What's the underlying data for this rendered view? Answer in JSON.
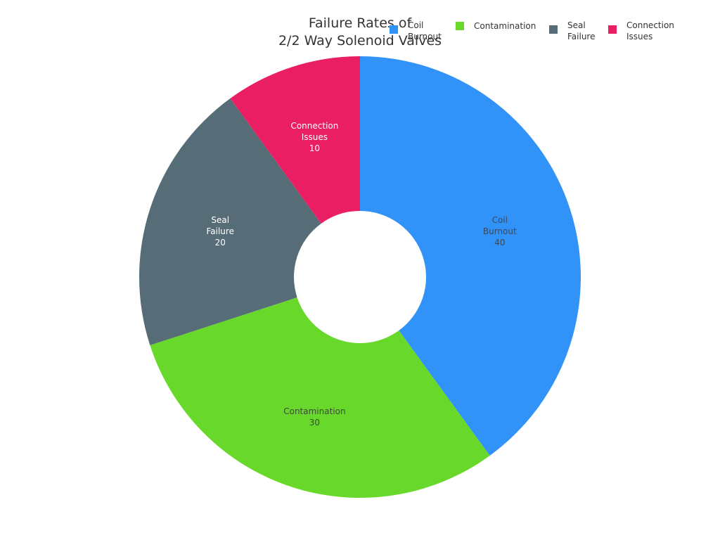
{
  "chart_data": {
    "type": "pie",
    "variant": "donut",
    "title": "Failure Rates of 2/2 Way Solenoid Valves",
    "title_lines": [
      "Failure Rates of",
      "2/2 Way Solenoid Valves"
    ],
    "categories": [
      "Coil Burnout",
      "Contamination",
      "Seal Failure",
      "Connection Issues"
    ],
    "values": [
      40,
      30,
      20,
      10
    ],
    "colors": [
      "#3192f7",
      "#68d92b",
      "#566d78",
      "#e91e63"
    ],
    "slice_labels": [
      {
        "text": "Coil\nBurnout\n40",
        "color": "#3a4a5a"
      },
      {
        "text": "Contamination\n30",
        "color": "#3a4a3a"
      },
      {
        "text": "Seal\nFailure\n20",
        "color": "#ffffff"
      },
      {
        "text": "Connection\nIssues\n10",
        "color": "#ffffff"
      }
    ],
    "legend_position": "top-right",
    "hole_ratio": 0.3
  },
  "legend": [
    {
      "label": "Coil\nBurnout",
      "color": "#3192f7"
    },
    {
      "label": "Contamination",
      "color": "#68d92b"
    },
    {
      "label": "Seal\nFailure",
      "color": "#566d78"
    },
    {
      "label": "Connection\nIssues",
      "color": "#e91e63"
    }
  ]
}
